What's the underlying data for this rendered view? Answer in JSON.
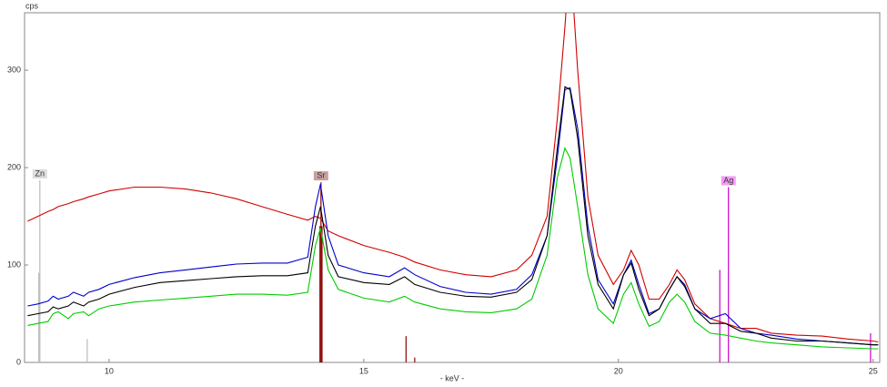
{
  "chart_data": {
    "type": "line",
    "y_label": "cps",
    "x_label": "- keV -",
    "xlim": [
      8.34,
      25.13
    ],
    "ylim": [
      0,
      359
    ],
    "xticks": [
      10,
      15,
      20,
      25
    ],
    "yticks": [
      0,
      100,
      200,
      300
    ],
    "x": [
      8.4,
      8.6,
      8.8,
      8.9,
      9.0,
      9.2,
      9.3,
      9.5,
      9.6,
      9.8,
      10.0,
      10.5,
      11,
      11.5,
      12,
      12.5,
      13,
      13.5,
      13.9,
      14.05,
      14.15,
      14.3,
      14.5,
      15,
      15.5,
      15.8,
      16.0,
      16.5,
      17,
      17.5,
      18,
      18.3,
      18.6,
      18.8,
      18.95,
      19.05,
      19.2,
      19.4,
      19.6,
      19.9,
      20.1,
      20.25,
      20.4,
      20.6,
      20.8,
      21.0,
      21.15,
      21.3,
      21.5,
      21.8,
      22.1,
      22.4,
      22.7,
      23.0,
      23.5,
      24,
      24.5,
      25,
      25.1
    ],
    "series": [
      {
        "name": "red",
        "color": "#d00000",
        "values": [
          145,
          150,
          155,
          157,
          160,
          163,
          165,
          168,
          170,
          173,
          176,
          180,
          180,
          178,
          174,
          168,
          160,
          152,
          146,
          150,
          148,
          135,
          130,
          120,
          113,
          108,
          103,
          95,
          90,
          88,
          95,
          110,
          150,
          250,
          345,
          420,
          300,
          170,
          110,
          80,
          95,
          115,
          100,
          65,
          65,
          80,
          95,
          85,
          60,
          45,
          40,
          35,
          35,
          30,
          28,
          27,
          24,
          22,
          21
        ]
      },
      {
        "name": "blue",
        "color": "#0000cc",
        "values": [
          58,
          60,
          63,
          68,
          65,
          68,
          72,
          68,
          72,
          75,
          80,
          87,
          92,
          95,
          98,
          101,
          102,
          102,
          108,
          160,
          183,
          130,
          100,
          92,
          88,
          97,
          90,
          78,
          72,
          70,
          75,
          90,
          130,
          210,
          280,
          282,
          240,
          140,
          85,
          60,
          90,
          105,
          80,
          50,
          55,
          75,
          88,
          80,
          55,
          45,
          50,
          35,
          30,
          28,
          24,
          22,
          20,
          18,
          18
        ]
      },
      {
        "name": "black",
        "color": "#000000",
        "values": [
          48,
          50,
          52,
          57,
          55,
          58,
          62,
          58,
          62,
          65,
          70,
          77,
          82,
          84,
          86,
          88,
          89,
          89,
          92,
          140,
          160,
          110,
          88,
          82,
          80,
          88,
          80,
          72,
          68,
          67,
          72,
          85,
          130,
          220,
          283,
          280,
          230,
          130,
          80,
          55,
          90,
          102,
          75,
          48,
          55,
          75,
          88,
          78,
          55,
          40,
          40,
          32,
          30,
          25,
          22,
          22,
          20,
          18,
          18
        ]
      },
      {
        "name": "green",
        "color": "#00cc00",
        "values": [
          38,
          40,
          42,
          50,
          52,
          45,
          50,
          52,
          48,
          55,
          58,
          62,
          64,
          66,
          68,
          70,
          70,
          69,
          72,
          120,
          138,
          95,
          75,
          66,
          62,
          68,
          62,
          55,
          52,
          51,
          55,
          65,
          110,
          190,
          220,
          210,
          160,
          90,
          55,
          40,
          70,
          82,
          60,
          37,
          42,
          62,
          70,
          62,
          42,
          30,
          28,
          25,
          22,
          20,
          18,
          16,
          15,
          14,
          14
        ]
      }
    ],
    "element_lines": [
      {
        "x": 8.62,
        "value": 92,
        "color": "#bbbbbb"
      },
      {
        "x": 9.57,
        "value": 24,
        "color": "#bbbbbb"
      },
      {
        "x": 14.14,
        "value": 140,
        "color": "#8b0000"
      },
      {
        "x": 14.18,
        "value": 140,
        "color": "#8b0000"
      },
      {
        "x": 15.83,
        "value": 27,
        "color": "#8b0000"
      },
      {
        "x": 16.0,
        "value": 5,
        "color": "#8b0000"
      },
      {
        "x": 21.99,
        "value": 95,
        "color": "#cc00cc"
      },
      {
        "x": 24.95,
        "value": 30,
        "color": "#cc00cc"
      }
    ],
    "element_labels": [
      {
        "label": "Zn",
        "x": 8.64,
        "value": 187,
        "color": "#bbbbbb",
        "background": "#dddddd"
      },
      {
        "label": "Sr",
        "x": 14.16,
        "value": 185,
        "color": "#8b0000",
        "background": "#c9a0a0"
      },
      {
        "label": "Ag",
        "x": 22.16,
        "value": 180,
        "color": "#cc00cc",
        "background": "#f49cf4"
      }
    ]
  }
}
